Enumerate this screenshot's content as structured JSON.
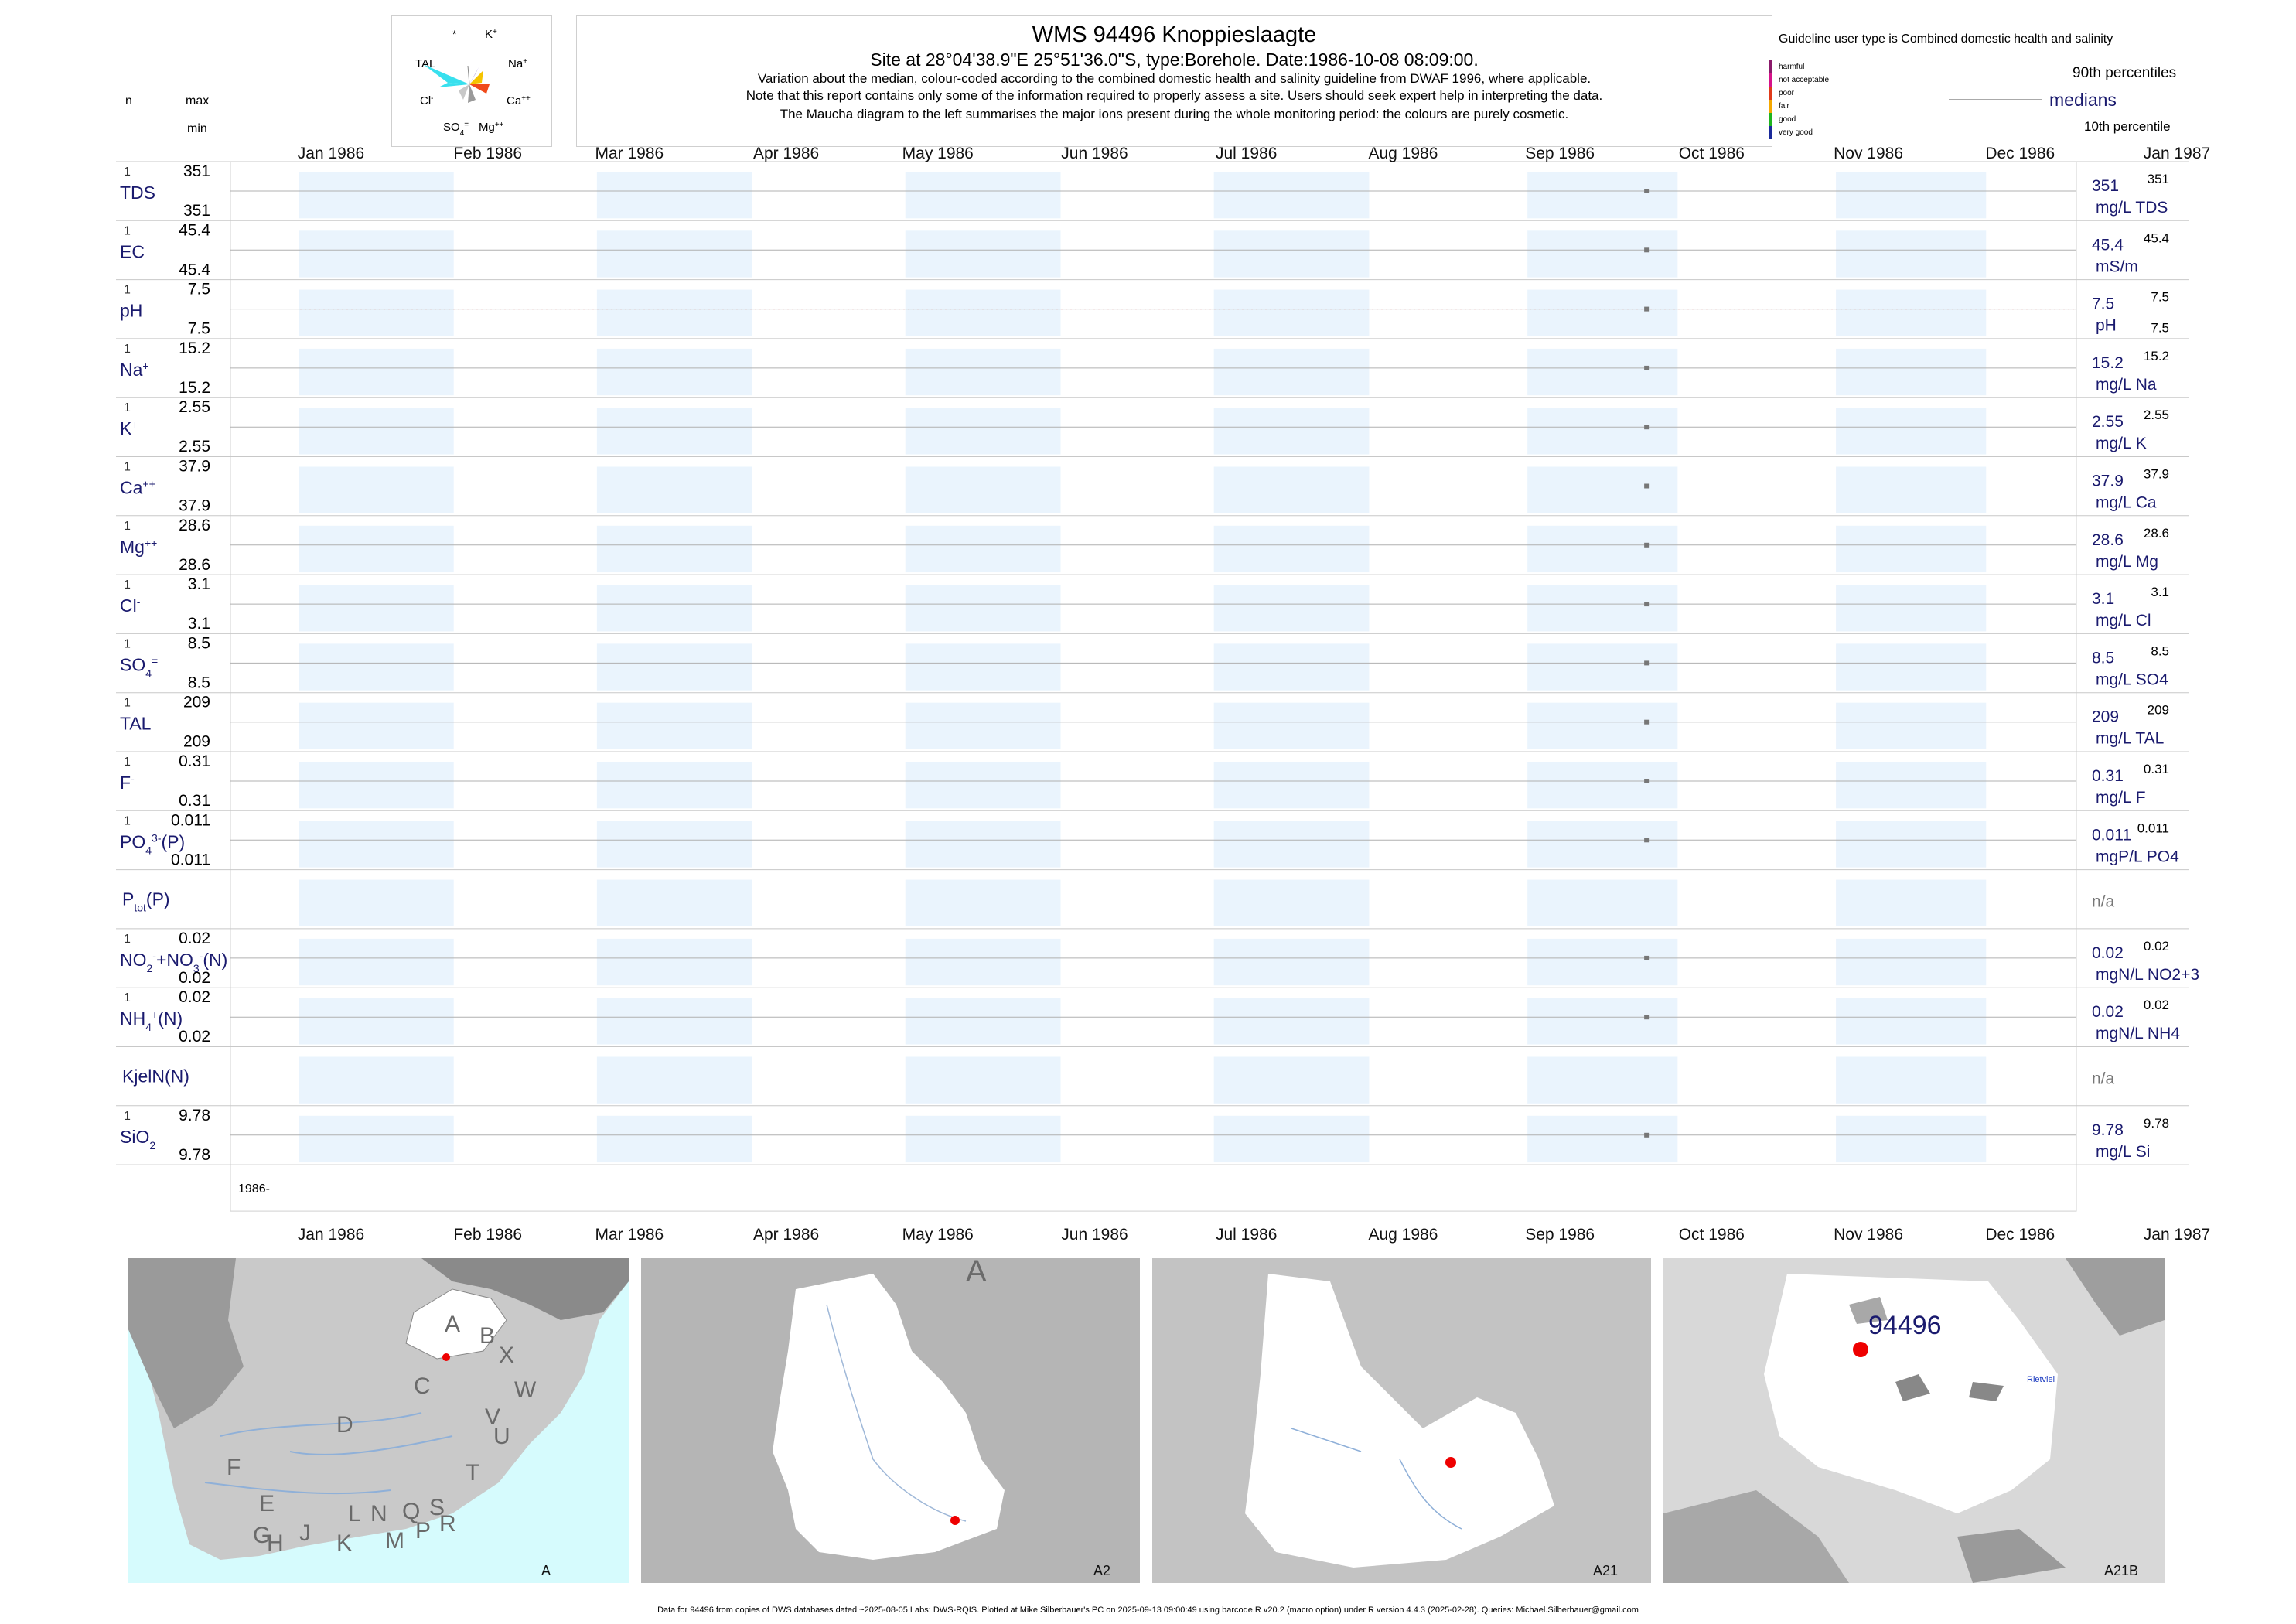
{
  "header": {
    "title": "WMS 94496  Knoppieslaagte",
    "subtitle": "Site at 28°04'38.9\"E 25°51'36.0\"S, type:Borehole. Date:1986-10-08 08:09:00.",
    "note1": "Variation about the median,  colour-coded according to the combined domestic health and salinity guideline from DWAF 1996, where applicable.",
    "note2": "Note that this report contains only some of the information required to properly assess a site. Users should seek expert help in interpreting the data.",
    "note3": "The Maucha diagram to the left summarises the major ions present during the whole monitoring period: the colours are purely cosmetic."
  },
  "maucha": {
    "labels": {
      "k": "K+",
      "na": "Na+",
      "ca": "Ca++",
      "mg": "Mg++",
      "so4": "SO4=",
      "cl": "Cl-",
      "tal": "TAL",
      "star": "*"
    },
    "colors": {
      "tal": "#38e0ee",
      "na": "#f5c400",
      "ca": "#f04a1a",
      "mg": "#9a9a9a",
      "so4": "#c8c8c8",
      "k": "#7a5fd0"
    }
  },
  "legend": {
    "guideline": "Guideline user type is Combined domestic health and salinity",
    "categories": [
      {
        "label": "harmful",
        "color": "#8b1a6b"
      },
      {
        "label": "not acceptable",
        "color": "#d6128a"
      },
      {
        "label": "poor",
        "color": "#e03a1a"
      },
      {
        "label": "fair",
        "color": "#f5a800"
      },
      {
        "label": "good",
        "color": "#1fb41f"
      },
      {
        "label": "very good",
        "color": "#1a2a9a"
      }
    ],
    "p90": "90th percentiles",
    "medians": "medians",
    "p10": "10th percentile"
  },
  "columns": {
    "n": "n",
    "max": "max",
    "min": "min"
  },
  "months": [
    "Jan 1986",
    "Feb 1986",
    "Mar 1986",
    "Apr 1986",
    "May 1986",
    "Jun 1986",
    "Jul 1986",
    "Aug 1986",
    "Sep 1986",
    "Oct 1986",
    "Nov 1986",
    "Dec 1986",
    "Jan 1987"
  ],
  "chart_data": {
    "type": "scatter",
    "x_range": [
      "1986-01-01",
      "1987-01-01"
    ],
    "sample_date": "1986-10-08",
    "date_axis_label": "1986-",
    "rows": [
      {
        "label": "TDS",
        "n": "1",
        "max": "351",
        "min": "351",
        "value": 351,
        "median": "351",
        "p90": "351",
        "unit": "mg/L TDS"
      },
      {
        "label": "EC",
        "n": "1",
        "max": "45.4",
        "min": "45.4",
        "value": 45.4,
        "median": "45.4",
        "p90": "45.4",
        "unit": "mS/m"
      },
      {
        "label": "pH",
        "n": "1",
        "max": "7.5",
        "min": "7.5",
        "value": 7.5,
        "median": "7.5",
        "p90": "7.5",
        "p10": "7.5",
        "unit": "pH"
      },
      {
        "label": "Na",
        "sup": "+",
        "n": "1",
        "max": "15.2",
        "min": "15.2",
        "value": 15.2,
        "median": "15.2",
        "p90": "15.2",
        "unit": "mg/L Na"
      },
      {
        "label": "K",
        "sup": "+",
        "n": "1",
        "max": "2.55",
        "min": "2.55",
        "value": 2.55,
        "median": "2.55",
        "p90": "2.55",
        "unit": "mg/L K"
      },
      {
        "label": "Ca",
        "sup": "++",
        "n": "1",
        "max": "37.9",
        "min": "37.9",
        "value": 37.9,
        "median": "37.9",
        "p90": "37.9",
        "unit": "mg/L Ca"
      },
      {
        "label": "Mg",
        "sup": "++",
        "n": "1",
        "max": "28.6",
        "min": "28.6",
        "value": 28.6,
        "median": "28.6",
        "p90": "28.6",
        "unit": "mg/L Mg"
      },
      {
        "label": "Cl",
        "sup": "-",
        "n": "1",
        "max": "3.1",
        "min": "3.1",
        "value": 3.1,
        "median": "3.1",
        "p90": "3.1",
        "unit": "mg/L Cl"
      },
      {
        "label": "SO",
        "sub": "4",
        "sup": "=",
        "n": "1",
        "max": "8.5",
        "min": "8.5",
        "value": 8.5,
        "median": "8.5",
        "p90": "8.5",
        "unit": "mg/L SO4"
      },
      {
        "label": "TAL",
        "n": "1",
        "max": "209",
        "min": "209",
        "value": 209,
        "median": "209",
        "p90": "209",
        "unit": "mg/L TAL"
      },
      {
        "label": "F",
        "sup": "-",
        "n": "1",
        "max": "0.31",
        "min": "0.31",
        "value": 0.31,
        "median": "0.31",
        "p90": "0.31",
        "unit": "mg/L F"
      },
      {
        "label": "PO",
        "sub": "4",
        "sup": "3-",
        "suffix": "(P)",
        "n": "1",
        "max": "0.011",
        "min": "0.011",
        "value": 0.011,
        "median": "0.011",
        "p90": "0.011",
        "unit": "mgP/L PO4"
      },
      {
        "label": "P",
        "sub": "tot",
        "suffix": "(P)",
        "na": "n/a"
      },
      {
        "label": "NO",
        "sub": "2",
        "sup": "-",
        "suffix": "+NO",
        "sub2": "3",
        "sup2": "-",
        "suffix2": "(N)",
        "n": "1",
        "max": "0.02",
        "min": "0.02",
        "value": 0.02,
        "median": "0.02",
        "p90": "0.02",
        "unit": "mgN/L NO2+3"
      },
      {
        "label": "NH",
        "sub": "4",
        "sup": "+",
        "suffix": "(N)",
        "n": "1",
        "max": "0.02",
        "min": "0.02",
        "value": 0.02,
        "median": "0.02",
        "p90": "0.02",
        "unit": "mgN/L NH4"
      },
      {
        "label": "KjelN(N)",
        "na": "n/a"
      },
      {
        "label": "SiO",
        "sub": "2",
        "n": "1",
        "max": "9.78",
        "min": "9.78",
        "value": 9.78,
        "median": "9.78",
        "p90": "9.78",
        "unit": "mg/L Si"
      }
    ]
  },
  "maps": [
    {
      "caption": "A",
      "letters": [
        "A",
        "B",
        "X",
        "W",
        "C",
        "D",
        "V",
        "U",
        "T",
        "F",
        "E",
        "G",
        "H",
        "J",
        "K",
        "L",
        "N",
        "M",
        "Q",
        "P",
        "S",
        "R"
      ]
    },
    {
      "caption": "A2",
      "letters": [
        "A"
      ]
    },
    {
      "caption": "A21"
    },
    {
      "caption": "A21B",
      "site_label": "94496",
      "place": "Rietvlei"
    }
  ],
  "footer": "Data for 94496 from copies of DWS databases dated ~2025-08-05 Labs: DWS-RQIS. Plotted at Mike Silberbauer's PC on 2025-09-13 09:00:49 using barcode.R v20.2 (macro option) under R version 4.4.3 (2025-02-28). Queries: Michael.Silberbauer@gmail.com"
}
